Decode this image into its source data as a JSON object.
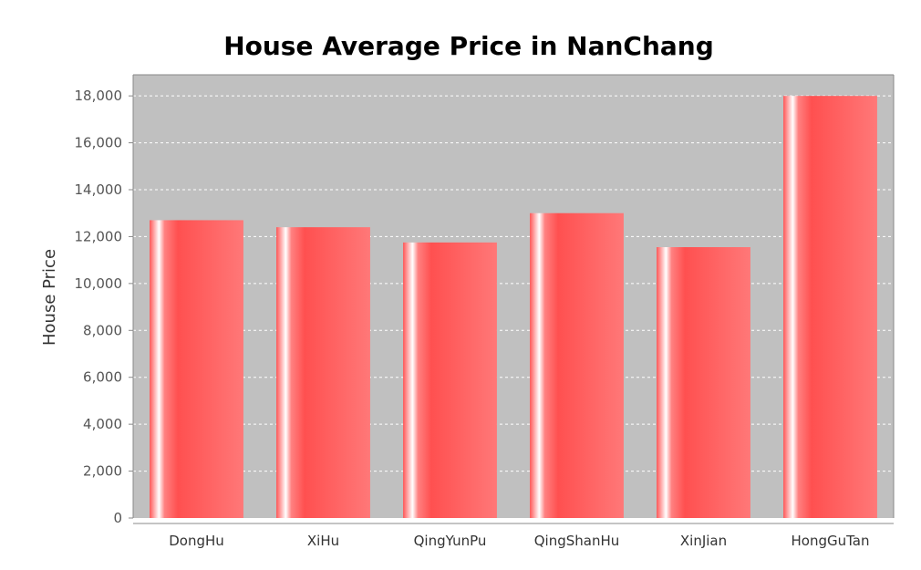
{
  "chart_data": {
    "type": "bar",
    "title": "House Average Price in NanChang",
    "ylabel": "House Price",
    "xlabel": "",
    "categories": [
      "DongHu",
      "XiHu",
      "QingYunPu",
      "QingShanHu",
      "XinJian",
      "HongGuTan"
    ],
    "values": [
      12700,
      12400,
      11750,
      13000,
      11550,
      18000
    ],
    "ylim": [
      0,
      18900
    ],
    "yticks": [
      "0",
      "2,000",
      "4,000",
      "6,000",
      "8,000",
      "10,000",
      "12,000",
      "14,000",
      "16,000",
      "18,000"
    ],
    "ytick_values": [
      0,
      2000,
      4000,
      6000,
      8000,
      10000,
      12000,
      14000,
      16000,
      18000
    ],
    "grid": true,
    "colors": {
      "plot_background": "#c0c0c0",
      "bar": "#ff5a5a",
      "bar_highlight": "#ffffff",
      "gridline": "#ffffff",
      "axis": "#888888"
    }
  }
}
